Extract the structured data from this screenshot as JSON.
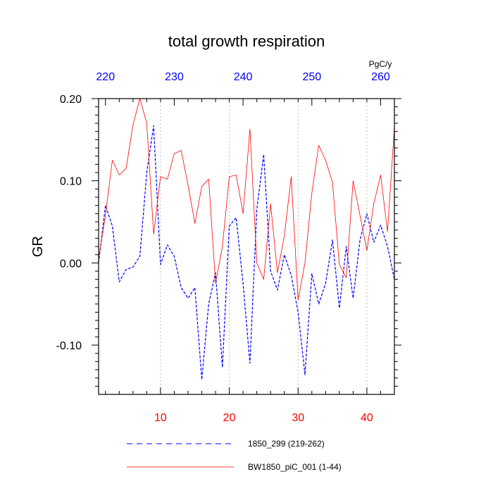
{
  "chart_data": {
    "type": "line",
    "title": "total growth respiration",
    "ylabel": "GR",
    "units_label": "PgC/y",
    "xlim": [
      1,
      44
    ],
    "ylim": [
      -0.16,
      0.2
    ],
    "x_bottom_ticks": [
      10,
      20,
      30,
      40
    ],
    "x_bottom_tick_labels": [
      "10",
      "20",
      "30",
      "40"
    ],
    "x_bottom_color": "#ff0000",
    "x_top_ticks": [
      220,
      230,
      240,
      250,
      260
    ],
    "x_top_tick_labels": [
      "220",
      "230",
      "240",
      "250",
      "260"
    ],
    "x_top_color": "#0000ff",
    "x_top_offset": 218,
    "y_ticks": [
      0.2,
      0.1,
      0.0,
      -0.1
    ],
    "y_tick_labels": [
      "0.20",
      "0.10",
      "0.00",
      "-0.10"
    ],
    "gridlines_x": [
      10,
      20,
      30,
      40
    ],
    "series": [
      {
        "name": "1850_299 (219-262)",
        "color": "#0000ff",
        "style": "dashed",
        "x": [
          1,
          2,
          3,
          4,
          5,
          6,
          7,
          8,
          9,
          10,
          11,
          12,
          13,
          14,
          15,
          16,
          17,
          18,
          19,
          20,
          21,
          22,
          23,
          24,
          25,
          26,
          27,
          28,
          29,
          30,
          31,
          32,
          33,
          34,
          35,
          36,
          37,
          38,
          39,
          40,
          41,
          42,
          43,
          44
        ],
        "values": [
          0.0,
          0.07,
          0.045,
          -0.023,
          -0.008,
          -0.005,
          0.008,
          0.11,
          0.167,
          -0.002,
          0.022,
          0.008,
          -0.03,
          -0.043,
          -0.03,
          -0.142,
          -0.05,
          -0.012,
          -0.127,
          0.045,
          0.055,
          -0.025,
          -0.122,
          0.065,
          0.132,
          -0.01,
          -0.033,
          0.01,
          -0.015,
          -0.06,
          -0.136,
          -0.013,
          -0.05,
          -0.025,
          0.028,
          -0.055,
          0.02,
          -0.043,
          0.028,
          0.06,
          0.025,
          0.046,
          0.02,
          -0.02
        ]
      },
      {
        "name": "BW1850_piC_001 (1-44)",
        "color": "#ff0000",
        "style": "solid",
        "x": [
          1,
          2,
          3,
          4,
          5,
          6,
          7,
          8,
          9,
          10,
          11,
          12,
          13,
          14,
          15,
          16,
          17,
          18,
          19,
          20,
          21,
          22,
          23,
          24,
          25,
          26,
          27,
          28,
          29,
          30,
          31,
          32,
          33,
          34,
          35,
          36,
          37,
          38,
          39,
          40,
          41,
          42,
          43,
          44
        ],
        "values": [
          0.005,
          0.058,
          0.125,
          0.107,
          0.115,
          0.168,
          0.2,
          0.17,
          0.035,
          0.105,
          0.102,
          0.133,
          0.137,
          0.095,
          0.048,
          0.093,
          0.102,
          -0.025,
          0.02,
          0.105,
          0.107,
          0.06,
          0.163,
          0.0,
          -0.02,
          0.072,
          -0.012,
          0.033,
          0.105,
          -0.045,
          0.0,
          0.085,
          0.143,
          0.125,
          0.098,
          -0.002,
          -0.018,
          0.1,
          0.058,
          0.015,
          0.072,
          0.107,
          0.038,
          0.165
        ]
      }
    ],
    "legend_position": "bottom"
  }
}
